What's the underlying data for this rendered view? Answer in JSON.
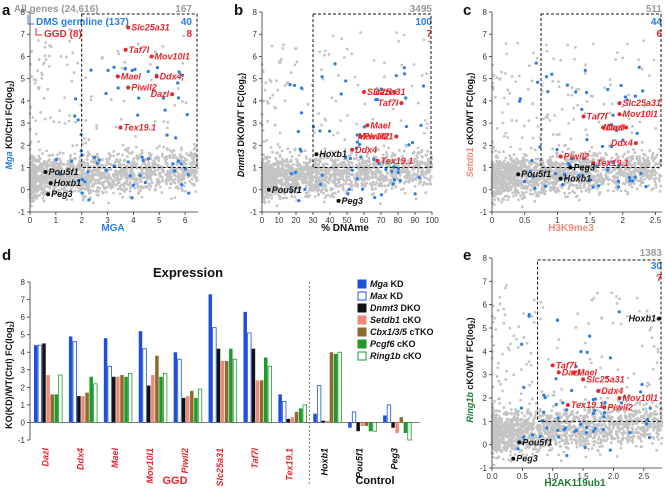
{
  "colors": {
    "red": "#e8262d",
    "blue": "#2a7de1",
    "grey": "#9a9a9a",
    "green": "#1e7b34",
    "orange": "#f08a78",
    "dark": "#111111",
    "dmsBlue": "#2a7de1"
  },
  "panel_a": {
    "letter": "a",
    "xlabel": "MGA",
    "ylabel_prefix": "Mga",
    "ylabel_suffix": " KD/Ctrl FC(log",
    "ylabel_sub": "2",
    "ylabel_close": ")",
    "legend": {
      "all": "All genes (24,616)",
      "all_n": "167",
      "dms": "DMS germline (137)",
      "dms_n": "40",
      "ggd": "GGD (8)",
      "ggd_n": "8"
    },
    "xticks": [
      "0",
      "1",
      "2",
      "3",
      "4",
      "5",
      "6"
    ],
    "yticks": [
      "-1",
      "0",
      "1",
      "2",
      "3",
      "4",
      "5",
      "6",
      "7",
      "8"
    ]
  },
  "panel_b": {
    "letter": "b",
    "xlabel": "% DNAme",
    "ylabel_prefix": "Dnmt3",
    "ylabel_suffix": " DKO/WT FC(log",
    "ylabel_sub": "2",
    "ylabel_close": ")",
    "counts": {
      "all": "3495",
      "dms": "100",
      "ggd": "7"
    },
    "xticks": [
      "0",
      "10",
      "20",
      "30",
      "40",
      "50",
      "60",
      "70",
      "80",
      "90",
      "100"
    ],
    "yticks": [
      "-1",
      "0",
      "1",
      "2",
      "3",
      "4",
      "5",
      "6",
      "7",
      "8"
    ]
  },
  "panel_c": {
    "letter": "c",
    "xlabel": "H3K9me3",
    "ylabel_prefix": "Setdb1",
    "ylabel_suffix": " cKO/WT FC(log",
    "ylabel_sub": "2",
    "ylabel_close": ")",
    "counts": {
      "all": "511",
      "dms": "44",
      "ggd": "6"
    },
    "xticks": [
      "0",
      "0.5",
      "1",
      "1.5",
      "2",
      "2.5"
    ],
    "yticks": [
      "-1",
      "0",
      "1",
      "2",
      "3",
      "4",
      "5",
      "6",
      "7",
      "8"
    ]
  },
  "panel_d": {
    "letter": "d",
    "title": "Expression",
    "ylabel": "KO(KD)/WT(Ctrl) FC(log",
    "ylabel_sub": "2",
    "ylabel_close": ")",
    "group_ggd": "GGD",
    "group_control": "Control",
    "yticks": [
      "-1",
      "0",
      "1",
      "2",
      "3",
      "4",
      "5",
      "6",
      "7",
      "8"
    ],
    "legend": [
      {
        "name": "Mga",
        "suffix": " KD",
        "color": "#1f4fd8",
        "filled": true
      },
      {
        "name": "Max",
        "suffix": " KD",
        "color": "#1f4fd8",
        "filled": false
      },
      {
        "name": "Dnmt3",
        "suffix": " DKO",
        "color": "#111111",
        "filled": true
      },
      {
        "name": "Setdb1",
        "suffix": " cKO",
        "color": "#f08a78",
        "filled": true
      },
      {
        "name": "Cbx1/3/5",
        "suffix": " cTKO",
        "color": "#8b6b2e",
        "filled": true
      },
      {
        "name": "Pcgf6",
        "suffix": " cKO",
        "color": "#1e9a2c",
        "filled": true
      },
      {
        "name": "Ring1b",
        "suffix": " cKO",
        "color": "#1e9a2c",
        "filled": false
      }
    ]
  },
  "panel_e": {
    "letter": "e",
    "xlabel": "H2AK119ub1",
    "ylabel_prefix": "Ring1b",
    "ylabel_suffix": " cKO/WT FC(log",
    "ylabel_sub": "2",
    "ylabel_close": ")",
    "counts": {
      "all": "1383",
      "dms": "30",
      "ggd": "7"
    },
    "xticks": [
      "0.0",
      "0.5",
      "1.0",
      "1.5",
      "2.0",
      "2.5"
    ],
    "yticks": [
      "-1",
      "0",
      "1",
      "2",
      "3",
      "4",
      "5",
      "6",
      "7",
      "8"
    ]
  },
  "chart_data": [
    {
      "type": "scatter",
      "panel": "a",
      "title": "",
      "xlabel": "MGA",
      "ylabel": "Mga KD/Ctrl FC(log2)",
      "xlim": [
        0,
        6.5
      ],
      "ylim": [
        -1,
        8
      ],
      "genes": [
        {
          "name": "Slc25a31",
          "x": 3.8,
          "y": 7.3,
          "group": "GGD"
        },
        {
          "name": "Taf7l",
          "x": 3.7,
          "y": 6.3,
          "group": "GGD"
        },
        {
          "name": "Mov10l1",
          "x": 4.7,
          "y": 6.0,
          "group": "GGD"
        },
        {
          "name": "Mael",
          "x": 3.4,
          "y": 5.1,
          "group": "GGD"
        },
        {
          "name": "Ddx4,",
          "x": 4.9,
          "y": 5.1,
          "group": "GGD"
        },
        {
          "name": "Piwil2",
          "x": 3.8,
          "y": 4.6,
          "group": "GGD"
        },
        {
          "name": "Dazl",
          "x": 5.5,
          "y": 4.3,
          "group": "GGD"
        },
        {
          "name": "Tex19.1",
          "x": 3.5,
          "y": 2.8,
          "group": "GGD"
        },
        {
          "name": "Pou5f1",
          "x": 0.6,
          "y": 0.8,
          "group": "Control"
        },
        {
          "name": "Hoxb1",
          "x": 0.8,
          "y": 0.3,
          "group": "Control"
        },
        {
          "name": "Peg3",
          "x": 0.7,
          "y": -0.2,
          "group": "Control"
        }
      ]
    },
    {
      "type": "scatter",
      "panel": "b",
      "title": "",
      "xlabel": "% DNAme",
      "ylabel": "Dnmt3 DKO/WT FC(log2)",
      "xlim": [
        0,
        100
      ],
      "ylim": [
        -1,
        8
      ],
      "genes": [
        {
          "name": "Slc25a31",
          "x": 60,
          "y": 4.4,
          "group": "GGD"
        },
        {
          "name": "Dazl",
          "x": 78,
          "y": 4.4,
          "group": "GGD"
        },
        {
          "name": "Taf7l",
          "x": 82,
          "y": 3.9,
          "group": "GGD"
        },
        {
          "name": "Mael",
          "x": 62,
          "y": 2.9,
          "group": "GGD"
        },
        {
          "name": "Piwil2",
          "x": 58,
          "y": 2.4,
          "group": "GGD"
        },
        {
          "name": "Mov10l1",
          "x": 79,
          "y": 2.4,
          "group": "GGD"
        },
        {
          "name": "Ddx4",
          "x": 53,
          "y": 1.8,
          "group": "GGD"
        },
        {
          "name": "Tex19.1",
          "x": 68,
          "y": 1.3,
          "group": "GGD"
        },
        {
          "name": "Hoxb1",
          "x": 32,
          "y": 1.6,
          "group": "Control"
        },
        {
          "name": "Pou5f1",
          "x": 4,
          "y": 0.0,
          "group": "Control"
        },
        {
          "name": "Peg3",
          "x": 45,
          "y": -0.5,
          "group": "Control"
        }
      ]
    },
    {
      "type": "scatter",
      "panel": "c",
      "title": "",
      "xlabel": "H3K9me3",
      "ylabel": "Setdb1 cKO/WT FC(log2)",
      "xlim": [
        0,
        2.6
      ],
      "ylim": [
        -1,
        8
      ],
      "genes": [
        {
          "name": "Slc25a31",
          "x": 1.95,
          "y": 3.9,
          "group": "GGD"
        },
        {
          "name": "Taf7l",
          "x": 1.4,
          "y": 3.3,
          "group": "GGD"
        },
        {
          "name": "Mov10l1",
          "x": 1.95,
          "y": 3.4,
          "group": "GGD"
        },
        {
          "name": "Dazl",
          "x": 1.7,
          "y": 2.8,
          "group": "GGD"
        },
        {
          "name": "Mael",
          "x": 2.05,
          "y": 2.8,
          "group": "GGD"
        },
        {
          "name": "Ddx4",
          "x": 2.2,
          "y": 2.1,
          "group": "GGD"
        },
        {
          "name": "Piwil2",
          "x": 1.05,
          "y": 1.5,
          "group": "GGD"
        },
        {
          "name": "Tex19.1",
          "x": 1.55,
          "y": 1.2,
          "group": "GGD"
        },
        {
          "name": "Pou5f1",
          "x": 0.4,
          "y": 0.7,
          "group": "Control"
        },
        {
          "name": "Peg3",
          "x": 1.2,
          "y": 1.0,
          "group": "Control"
        },
        {
          "name": "Hoxb1",
          "x": 1.05,
          "y": 0.5,
          "group": "Control"
        }
      ]
    },
    {
      "type": "bar",
      "panel": "d",
      "title": "Expression",
      "xlabel": "",
      "ylabel": "KO(KD)/WT(Ctrl) FC(log2)",
      "ylim": [
        -1,
        8
      ],
      "categories": [
        "Dazl",
        "Ddx4",
        "Mael",
        "Mov10l1",
        "Piwil2",
        "Slc25a31",
        "Taf7l",
        "Tex19.1",
        "Hoxb1",
        "Pou5f1",
        "Peg3"
      ],
      "groups": {
        "GGD": [
          "Dazl",
          "Ddx4",
          "Mael",
          "Mov10l1",
          "Piwil2",
          "Slc25a31",
          "Taf7l",
          "Tex19.1"
        ],
        "Control": [
          "Hoxb1",
          "Pou5f1",
          "Peg3"
        ]
      },
      "series": [
        {
          "name": "Mga KD",
          "values": [
            4.4,
            4.9,
            4.8,
            5.2,
            4.0,
            7.3,
            6.3,
            1.6,
            0.5,
            -0.3,
            0.4
          ]
        },
        {
          "name": "Max KD",
          "values": [
            4.4,
            4.6,
            3.2,
            4.2,
            3.6,
            5.4,
            5.1,
            1.2,
            2.1,
            0.6,
            1.0
          ]
        },
        {
          "name": "Dnmt3 DKO",
          "values": [
            4.5,
            1.5,
            2.6,
            2.1,
            1.4,
            4.2,
            4.2,
            0.2,
            0.1,
            -0.5,
            -0.3
          ]
        },
        {
          "name": "Setdb1 cKO",
          "values": [
            2.7,
            1.5,
            2.6,
            2.7,
            1.5,
            3.5,
            2.4,
            0.3,
            0.1,
            -0.2,
            -0.6
          ]
        },
        {
          "name": "Cbx1/3/5 cTKO",
          "values": [
            1.6,
            1.7,
            2.7,
            3.8,
            1.8,
            3.5,
            2.4,
            0.6,
            4.0,
            -0.2,
            0.3
          ]
        },
        {
          "name": "Pcgf6 cKO",
          "values": [
            1.6,
            2.6,
            2.6,
            2.6,
            1.4,
            4.2,
            3.7,
            0.8,
            3.9,
            -0.5,
            -0.6
          ]
        },
        {
          "name": "Ring1b cKO",
          "values": [
            2.7,
            2.2,
            2.8,
            2.8,
            1.9,
            3.6,
            3.2,
            1.0,
            4.0,
            -0.5,
            -1.0
          ]
        }
      ]
    },
    {
      "type": "scatter",
      "panel": "e",
      "title": "",
      "xlabel": "H2AK119ub1",
      "ylabel": "Ring1b cKO/WT FC(log2)",
      "xlim": [
        0,
        2.8
      ],
      "ylim": [
        -1,
        8
      ],
      "genes": [
        {
          "name": "Hoxb1",
          "x": 2.75,
          "y": 5.4,
          "group": "Control"
        },
        {
          "name": "Taf7l",
          "x": 1.0,
          "y": 3.4,
          "group": "GGD"
        },
        {
          "name": "Dazl",
          "x": 1.1,
          "y": 3.1,
          "group": "GGD"
        },
        {
          "name": "Mael",
          "x": 1.35,
          "y": 3.1,
          "group": "GGD"
        },
        {
          "name": "Slc25a31",
          "x": 1.5,
          "y": 2.8,
          "group": "GGD"
        },
        {
          "name": "Ddx4",
          "x": 1.75,
          "y": 2.3,
          "group": "GGD"
        },
        {
          "name": "Mov10l1",
          "x": 2.1,
          "y": 2.0,
          "group": "GGD"
        },
        {
          "name": "Piwil2",
          "x": 1.85,
          "y": 1.6,
          "group": "GGD"
        },
        {
          "name": "Tex19.1",
          "x": 1.25,
          "y": 1.7,
          "group": "GGD"
        },
        {
          "name": "Pou5f1",
          "x": 0.45,
          "y": 0.1,
          "group": "Control"
        },
        {
          "name": "Peg3",
          "x": 0.35,
          "y": -0.6,
          "group": "Control"
        }
      ]
    }
  ]
}
